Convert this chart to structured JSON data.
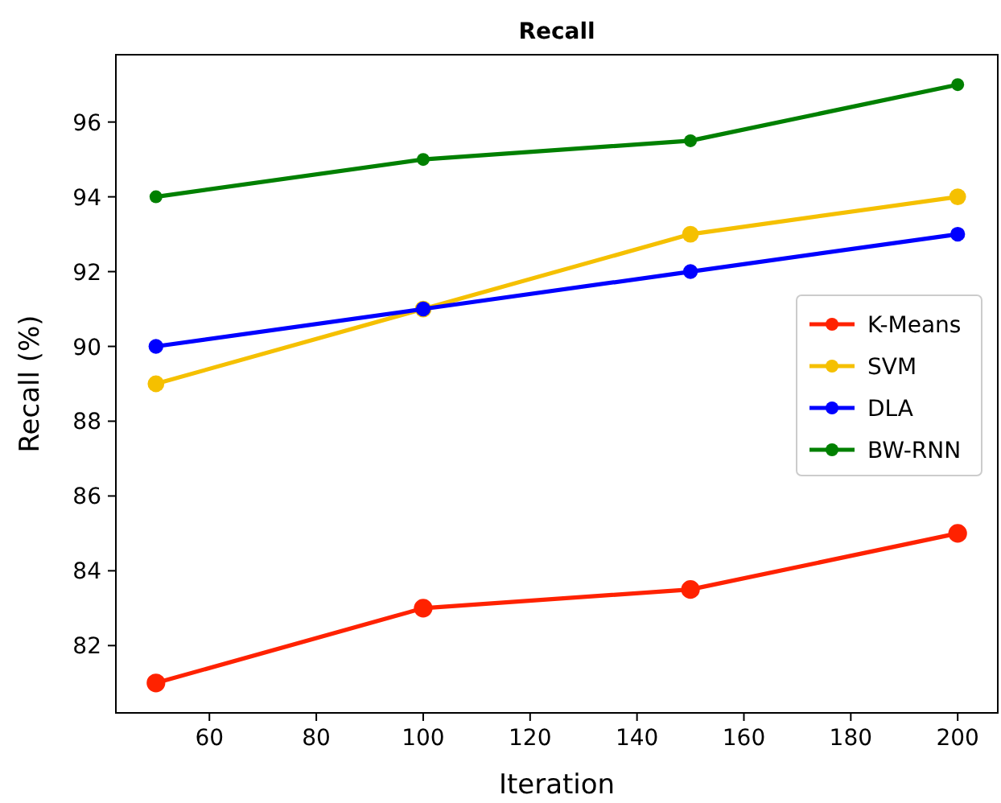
{
  "chart_data": {
    "type": "line",
    "title": "Recall",
    "xlabel": "Iteration",
    "ylabel": "Recall (%)",
    "x": [
      50,
      100,
      150,
      200
    ],
    "series": [
      {
        "name": "K-Means",
        "color": "#ff2200",
        "values": [
          81,
          83,
          83.5,
          85
        ]
      },
      {
        "name": "SVM",
        "color": "#f5c000",
        "values": [
          89,
          91,
          93,
          94
        ]
      },
      {
        "name": "DLA",
        "color": "#0000ff",
        "values": [
          90,
          91,
          92,
          93
        ]
      },
      {
        "name": "BW-RNN",
        "color": "#008000",
        "values": [
          94,
          95,
          95.5,
          97
        ]
      }
    ],
    "xlim": [
      42.5,
      207.5
    ],
    "ylim": [
      80.2,
      97.8
    ],
    "xticks": [
      60,
      80,
      100,
      120,
      140,
      160,
      180,
      200
    ],
    "yticks": [
      82,
      84,
      86,
      88,
      90,
      92,
      94,
      96
    ],
    "legend": "right",
    "marker": "circle",
    "line_style": "solid",
    "grid": false
  }
}
